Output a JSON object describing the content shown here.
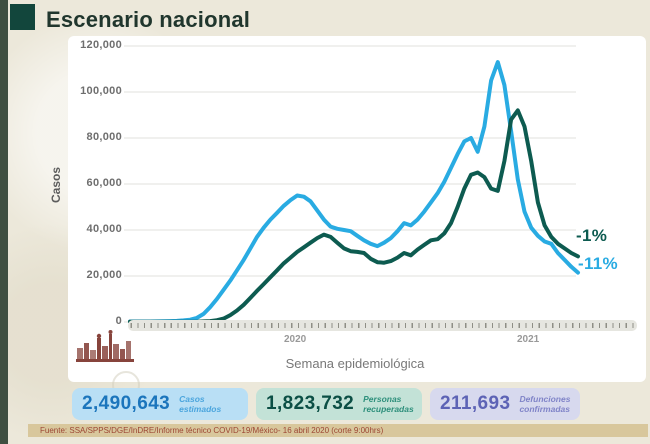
{
  "header": {
    "title": "Escenario nacional"
  },
  "chart": {
    "y_axis_title": "Casos",
    "x_axis_title": "Semana epidemiológica",
    "y_ticks": [
      "120,000",
      "100,000",
      "80,000",
      "60,000",
      "40,000",
      "20,000",
      "0"
    ],
    "year_labels": [
      "2020",
      "2021"
    ],
    "annotations": [
      {
        "text": "-1%",
        "color": "#0d5b50"
      },
      {
        "text": "-11%",
        "color": "#29abe2"
      }
    ]
  },
  "chart_data": {
    "type": "line",
    "title": "Escenario nacional",
    "xlabel": "Semana epidemiológica",
    "ylabel": "Casos",
    "ylim": [
      0,
      120000
    ],
    "grid": "horizontal",
    "x_axis": {
      "unit": "semana epidemiológica",
      "groups": [
        {
          "year": "2020",
          "weeks": 53
        },
        {
          "year": "2021",
          "weeks": 15
        }
      ]
    },
    "series": [
      {
        "name": "linea_azul",
        "annotation": "-11%",
        "color": "#29abe2",
        "values": [
          200,
          200,
          200,
          200,
          250,
          300,
          400,
          500,
          700,
          1000,
          1800,
          3500,
          6500,
          10000,
          14000,
          18000,
          22500,
          27000,
          32000,
          37000,
          41000,
          44500,
          47500,
          50500,
          53000,
          55000,
          54500,
          52500,
          48500,
          44500,
          41500,
          40500,
          40000,
          39500,
          37500,
          35500,
          34000,
          33000,
          34500,
          36500,
          39500,
          43000,
          42000,
          44500,
          48000,
          52000,
          56000,
          61000,
          67000,
          73000,
          78500,
          80000,
          74000,
          85000,
          105000,
          113000,
          103000,
          83000,
          62000,
          48000,
          41000,
          37500,
          35000,
          34000,
          30000,
          27000,
          24000,
          21500
        ]
      },
      {
        "name": "linea_verde",
        "annotation": "-1%",
        "color": "#0d5b50",
        "values": [
          100,
          100,
          100,
          100,
          100,
          100,
          100,
          100,
          100,
          100,
          150,
          250,
          400,
          800,
          1500,
          3000,
          5000,
          7500,
          10500,
          13500,
          16500,
          19500,
          22500,
          25500,
          28000,
          30500,
          32500,
          34500,
          36500,
          38000,
          37000,
          34500,
          32000,
          30800,
          30500,
          30000,
          27500,
          26000,
          25800,
          26500,
          28000,
          30000,
          29000,
          31500,
          33500,
          35500,
          36000,
          38500,
          43000,
          50000,
          58000,
          64000,
          65000,
          63000,
          58000,
          57000,
          70000,
          88000,
          92000,
          85000,
          70000,
          52000,
          42000,
          37000,
          34000,
          32000,
          30000,
          28500
        ]
      }
    ]
  },
  "stats": [
    {
      "value": "2,490,643",
      "label": "Casos estimados",
      "bg": "#b9dff5",
      "value_color": "#1b75bc"
    },
    {
      "value": "1,823,732",
      "label": "Personas recuperadas",
      "bg": "#c3e2d7",
      "value_color": "#0b4f45"
    },
    {
      "value": "211,693",
      "label": "Defunciones confirmadas",
      "bg": "#d7d9ee",
      "value_color": "#5d63b5"
    }
  ],
  "footer": {
    "text": "Fuente: SSA/SPPS/DGE/InDRE/Informe técnico COVID-19/México- 16 abril 2020 (corte 9:00hrs)"
  }
}
